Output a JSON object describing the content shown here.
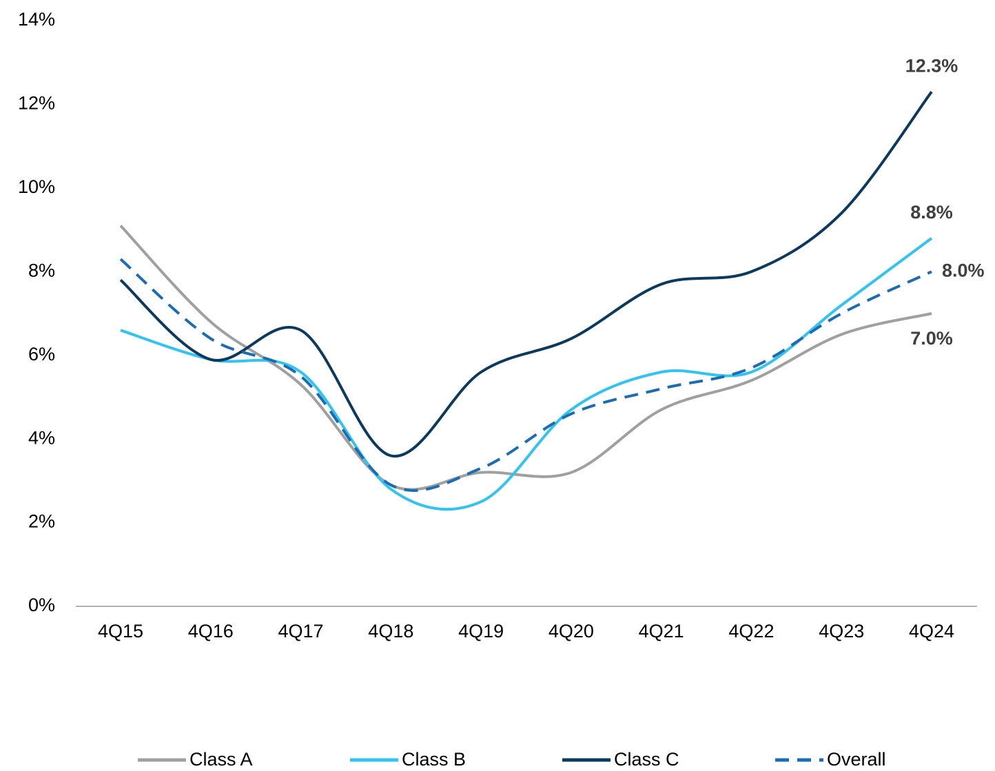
{
  "chart_data": {
    "type": "line",
    "categories": [
      "4Q15",
      "4Q16",
      "4Q17",
      "4Q18",
      "4Q19",
      "4Q20",
      "4Q21",
      "4Q22",
      "4Q23",
      "4Q24"
    ],
    "series": [
      {
        "name": "Class A",
        "color": "#a0a0a0",
        "line_style": "solid",
        "values": [
          9.1,
          6.8,
          5.3,
          2.9,
          3.2,
          3.2,
          4.7,
          5.4,
          6.5,
          7.0
        ],
        "value_labels": [
          null,
          null,
          null,
          null,
          null,
          null,
          null,
          null,
          null,
          "7.0%"
        ]
      },
      {
        "name": "Class B",
        "color": "#33c3f0",
        "line_style": "solid",
        "values": [
          6.6,
          5.9,
          5.6,
          2.8,
          2.5,
          4.7,
          5.6,
          5.6,
          7.2,
          8.8
        ],
        "value_labels": [
          null,
          null,
          null,
          null,
          null,
          null,
          null,
          null,
          null,
          "8.8%"
        ]
      },
      {
        "name": "Class C",
        "color": "#0b3a5e",
        "line_style": "solid",
        "values": [
          7.8,
          5.9,
          6.6,
          3.6,
          5.6,
          6.4,
          7.7,
          8.0,
          9.4,
          12.3
        ],
        "value_labels": [
          null,
          null,
          null,
          null,
          null,
          null,
          null,
          null,
          null,
          "12.3%"
        ]
      },
      {
        "name": "Overall",
        "color": "#1b6cb3",
        "line_style": "dashed",
        "values": [
          8.3,
          6.4,
          5.5,
          2.9,
          3.3,
          4.6,
          5.2,
          5.7,
          7.0,
          8.0
        ],
        "value_labels": [
          null,
          null,
          null,
          null,
          null,
          null,
          null,
          null,
          null,
          "8.0%"
        ]
      }
    ],
    "ylim": [
      0,
      14
    ],
    "yticks": [
      {
        "value": 0,
        "label": "0%"
      },
      {
        "value": 2,
        "label": "2%"
      },
      {
        "value": 4,
        "label": "4%"
      },
      {
        "value": 6,
        "label": "6%"
      },
      {
        "value": 8,
        "label": "8%"
      },
      {
        "value": 10,
        "label": "10%"
      },
      {
        "value": 12,
        "label": "12%"
      },
      {
        "value": 14,
        "label": "14%"
      }
    ],
    "grid": false,
    "legend": "bottom"
  }
}
